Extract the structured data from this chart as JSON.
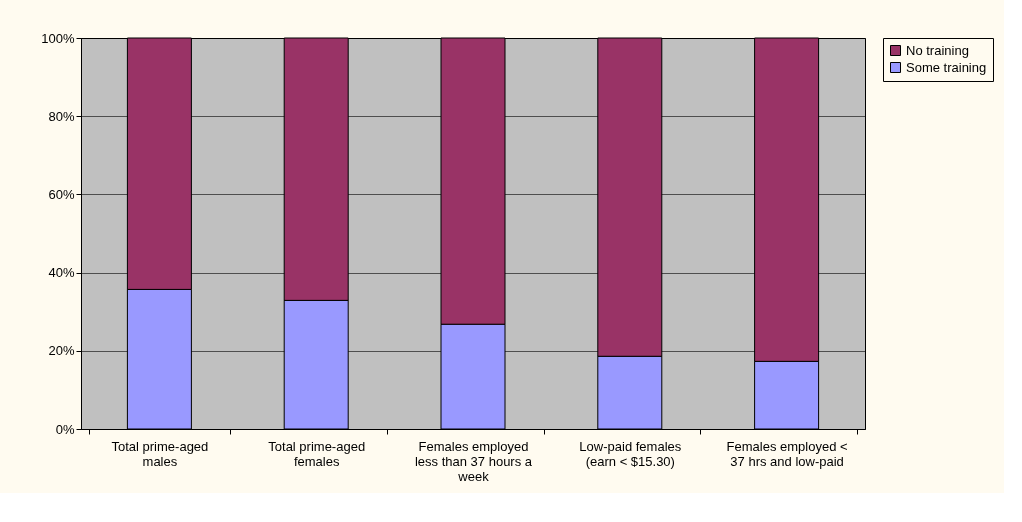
{
  "chart_data": {
    "type": "bar",
    "stacked": true,
    "categories": [
      "Total prime-aged males",
      "Total prime-aged females",
      "Females employed less than 37 hours a week",
      "Low-paid females (earn < $15.30)",
      "Females employed < 37 hrs and low-paid"
    ],
    "series": [
      {
        "name": "Some training",
        "color": "#9999ff",
        "values": [
          35.7,
          32.9,
          26.8,
          18.6,
          17.3
        ]
      },
      {
        "name": "No training",
        "color": "#993366",
        "values": [
          64.3,
          67.1,
          73.2,
          81.4,
          82.7
        ]
      }
    ],
    "ylim": [
      0,
      100
    ],
    "yticks": [
      {
        "value": 0,
        "label": "0%"
      },
      {
        "value": 20,
        "label": "20%"
      },
      {
        "value": 40,
        "label": "40%"
      },
      {
        "value": 60,
        "label": "60%"
      },
      {
        "value": 80,
        "label": "80%"
      },
      {
        "value": 100,
        "label": "100%"
      }
    ],
    "grid": "y",
    "legend": "right"
  }
}
